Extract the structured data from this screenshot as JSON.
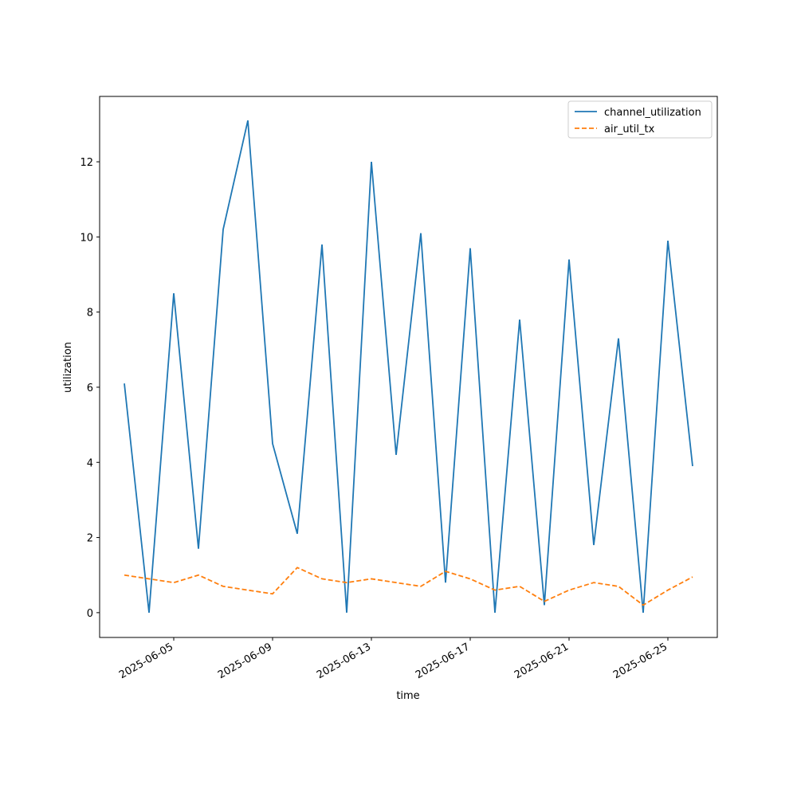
{
  "chart_data": {
    "type": "line",
    "xlabel": "time",
    "ylabel": "utilization",
    "x": [
      "2025-06-03",
      "2025-06-04",
      "2025-06-05",
      "2025-06-06",
      "2025-06-07",
      "2025-06-08",
      "2025-06-09",
      "2025-06-10",
      "2025-06-11",
      "2025-06-12",
      "2025-06-13",
      "2025-06-14",
      "2025-06-15",
      "2025-06-16",
      "2025-06-17",
      "2025-06-18",
      "2025-06-19",
      "2025-06-20",
      "2025-06-21",
      "2025-06-22",
      "2025-06-23",
      "2025-06-24",
      "2025-06-25",
      "2025-06-26"
    ],
    "series": [
      {
        "name": "channel_utilization",
        "color": "#1f77b4",
        "style": "solid",
        "values": [
          6.1,
          0,
          8.5,
          1.7,
          10.2,
          13.1,
          4.5,
          2.1,
          9.8,
          0,
          12.0,
          4.2,
          10.1,
          0.8,
          9.7,
          0,
          7.8,
          0.2,
          9.4,
          1.8,
          7.3,
          0,
          9.9,
          3.9
        ]
      },
      {
        "name": "air_util_tx",
        "color": "#ff7f0e",
        "style": "dashed",
        "values": [
          1.0,
          0.9,
          0.8,
          1.0,
          0.7,
          0.6,
          0.5,
          1.2,
          0.9,
          0.8,
          0.9,
          0.8,
          0.7,
          1.1,
          0.9,
          0.6,
          0.7,
          0.3,
          0.6,
          0.8,
          0.7,
          0.2,
          0.6,
          0.95
        ]
      }
    ],
    "xlim": [
      "2025-06-02",
      "2025-06-27"
    ],
    "xticks": [
      "2025-06-05",
      "2025-06-09",
      "2025-06-13",
      "2025-06-17",
      "2025-06-21",
      "2025-06-25"
    ],
    "ylim": [
      -0.66,
      13.74
    ],
    "yticks": [
      0,
      2,
      4,
      6,
      8,
      10,
      12
    ],
    "legend": "upper-right"
  }
}
